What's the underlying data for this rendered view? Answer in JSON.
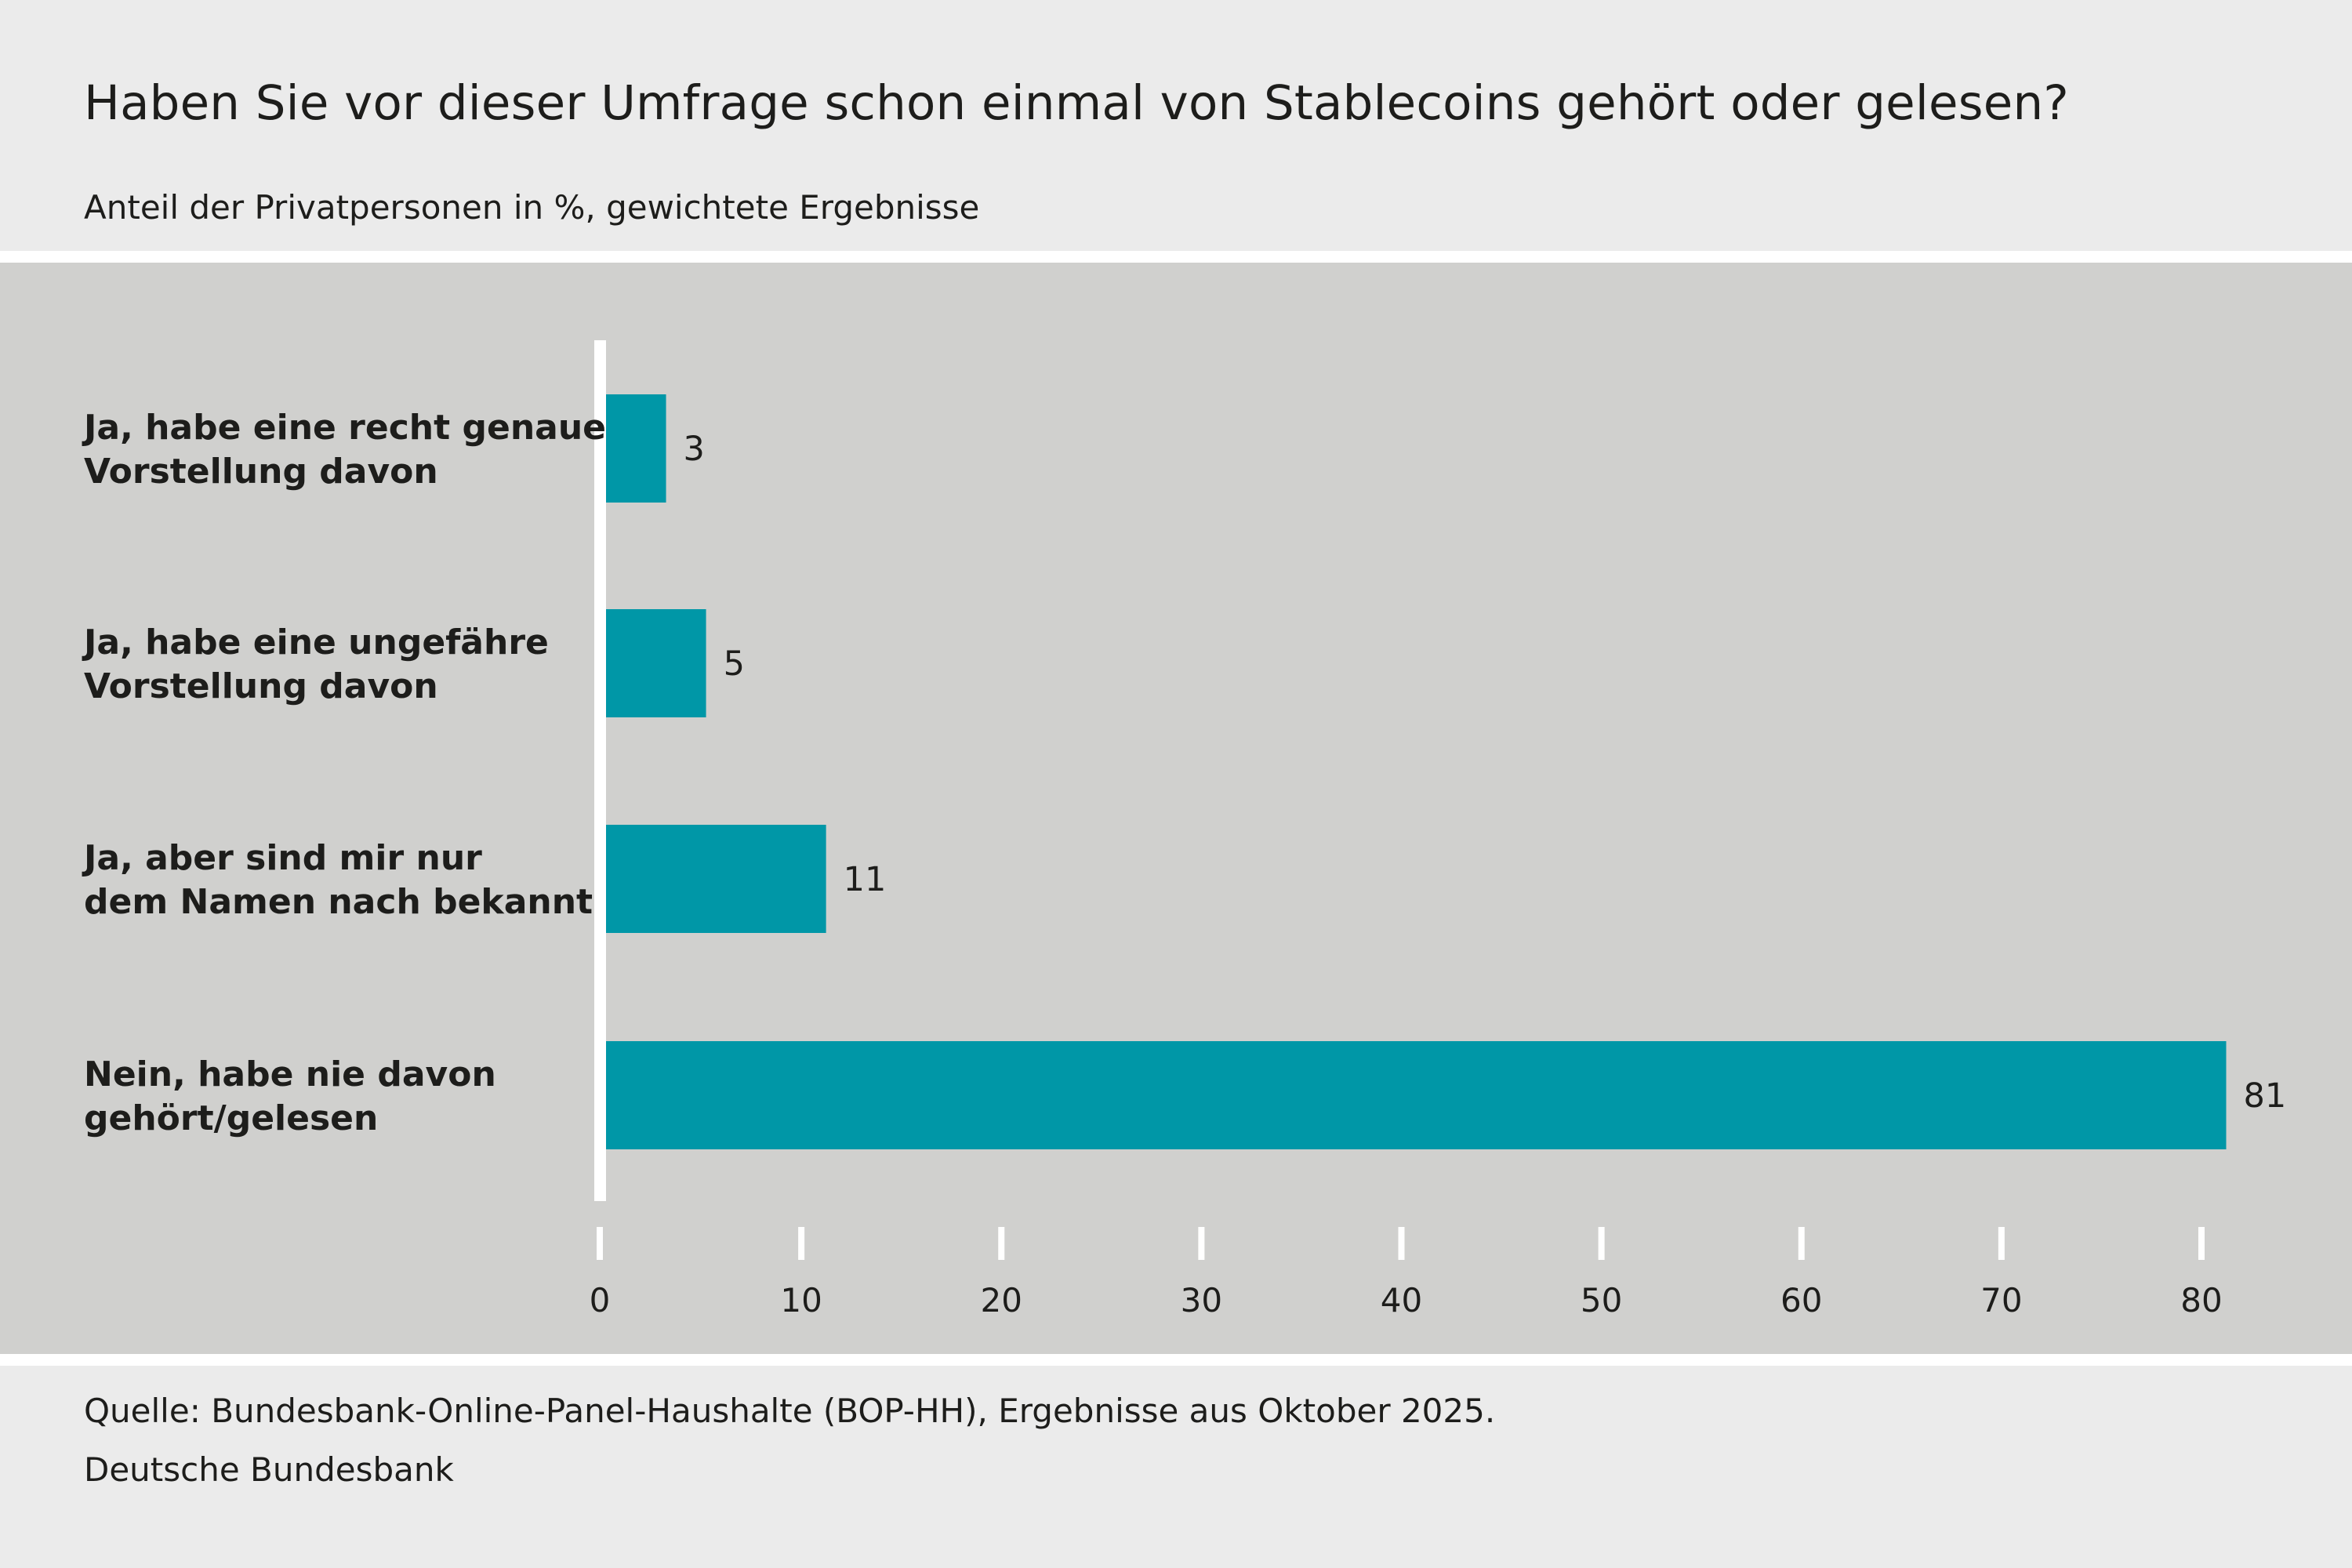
{
  "chart_data": {
    "type": "bar",
    "orientation": "horizontal",
    "title": "Haben Sie vor dieser Umfrage schon einmal von Stablecoins gehört oder gelesen?",
    "subtitle": "Anteil der Privatpersonen in %, gewichtete Ergebnisse",
    "categories": [
      [
        "Ja, habe eine recht genaue",
        "Vorstellung davon"
      ],
      [
        "Ja, habe eine ungefähre",
        "Vorstellung davon"
      ],
      [
        "Ja, aber sind mir nur",
        "dem Namen nach bekannt"
      ],
      [
        "Nein, habe nie davon",
        "gehört/gelesen"
      ]
    ],
    "values": [
      3,
      5,
      11,
      81
    ],
    "xlim": [
      0,
      80
    ],
    "xticks": [
      0,
      10,
      20,
      30,
      40,
      50,
      60,
      70,
      80
    ],
    "grid": false,
    "legend": "none",
    "bar_color": "#0097a7",
    "background_color": "#d0d0ce"
  },
  "footer": {
    "source": "Quelle: Bundesbank-Online-Panel-Haushalte (BOP-HH), Ergebnisse aus Oktober 2025.",
    "publisher": "Deutsche Bundesbank"
  }
}
